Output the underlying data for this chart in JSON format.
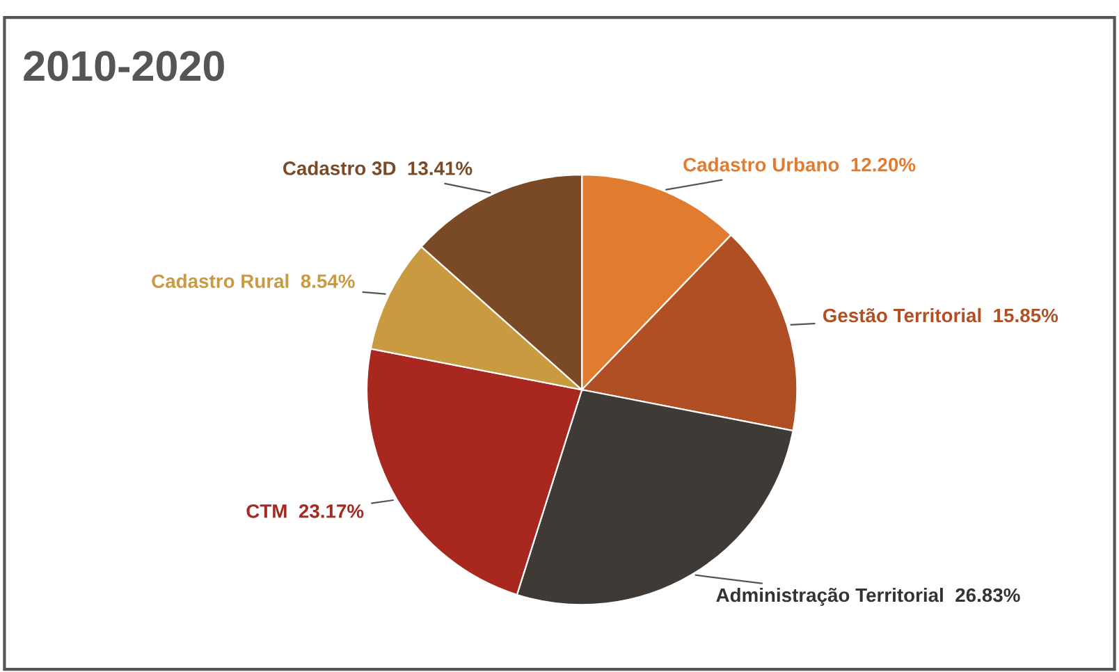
{
  "chart_data": {
    "type": "pie",
    "title": "2010-2020",
    "categories": [
      "Cadastro Urbano",
      "Gestão Territorial",
      "Administração Territorial",
      "CTM",
      "Cadastro Rural",
      "Cadastro 3D"
    ],
    "values": [
      12.2,
      15.85,
      26.83,
      23.17,
      8.54,
      13.41
    ],
    "value_labels": [
      "12.20%",
      "15.85%",
      "26.83%",
      "23.17%",
      "8.54%",
      "13.41%"
    ],
    "colors": [
      "#e07b30",
      "#b04f23",
      "#403a36",
      "#a82820",
      "#c99a40",
      "#7a4a26"
    ],
    "legend": false
  }
}
